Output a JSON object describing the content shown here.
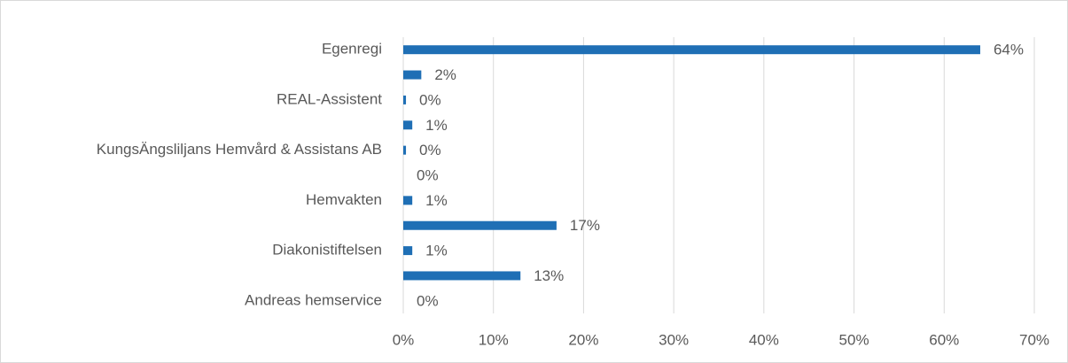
{
  "chart_data": {
    "type": "hbar",
    "categories": [
      "Egenregi",
      null,
      "REAL-Assistent",
      null,
      "KungsÄngsliljans Hemvård & Assistans AB",
      null,
      "Hemvakten",
      null,
      "Diakonistiftelsen",
      null,
      "Andreas hemservice"
    ],
    "values": [
      64,
      2,
      0.3,
      1,
      0.3,
      0,
      1,
      17,
      1,
      13,
      0
    ],
    "value_labels": [
      "64%",
      "2%",
      "0%",
      "1%",
      "0%",
      "0%",
      "1%",
      "17%",
      "1%",
      "13%",
      "0%"
    ],
    "color": "#1f6fb5",
    "xlim": [
      0,
      70
    ],
    "xticks": [
      {
        "value": 0,
        "label": "0%"
      },
      {
        "value": 10,
        "label": "10%"
      },
      {
        "value": 20,
        "label": "20%"
      },
      {
        "value": 30,
        "label": "30%"
      },
      {
        "value": 40,
        "label": "40%"
      },
      {
        "value": 50,
        "label": "50%"
      },
      {
        "value": 60,
        "label": "60%"
      },
      {
        "value": 70,
        "label": "70%"
      }
    ],
    "grid": true
  }
}
